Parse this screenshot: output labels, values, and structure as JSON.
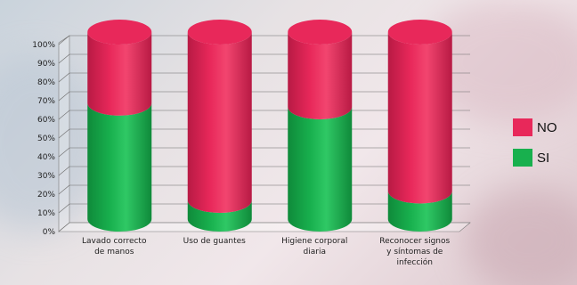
{
  "colors": {
    "si": "#18b04e",
    "si_dark": "#0f8a3a",
    "no": "#e8285a",
    "no_dark": "#b81a44"
  },
  "chart_data": {
    "type": "bar",
    "stacked": true,
    "bar_shape": "cylinder",
    "title": "",
    "xlabel": "",
    "ylabel": "",
    "ylim": [
      0,
      100
    ],
    "y_ticks": [
      "0%",
      "10%",
      "20%",
      "30%",
      "40%",
      "50%",
      "60%",
      "70%",
      "80%",
      "90%",
      "100%"
    ],
    "grid": true,
    "legend_position": "right",
    "categories": [
      [
        "Lavado correcto",
        "de manos"
      ],
      [
        "Uso de guantes"
      ],
      [
        "Higiene corporal",
        "diaria"
      ],
      [
        "Reconocer signos",
        "y síntomas de",
        "infección"
      ]
    ],
    "series": [
      {
        "name": "SI",
        "values": [
          62,
          10,
          60,
          15
        ]
      },
      {
        "name": "NO",
        "values": [
          38,
          90,
          40,
          85
        ]
      }
    ],
    "legend": [
      "NO",
      "SI"
    ]
  }
}
